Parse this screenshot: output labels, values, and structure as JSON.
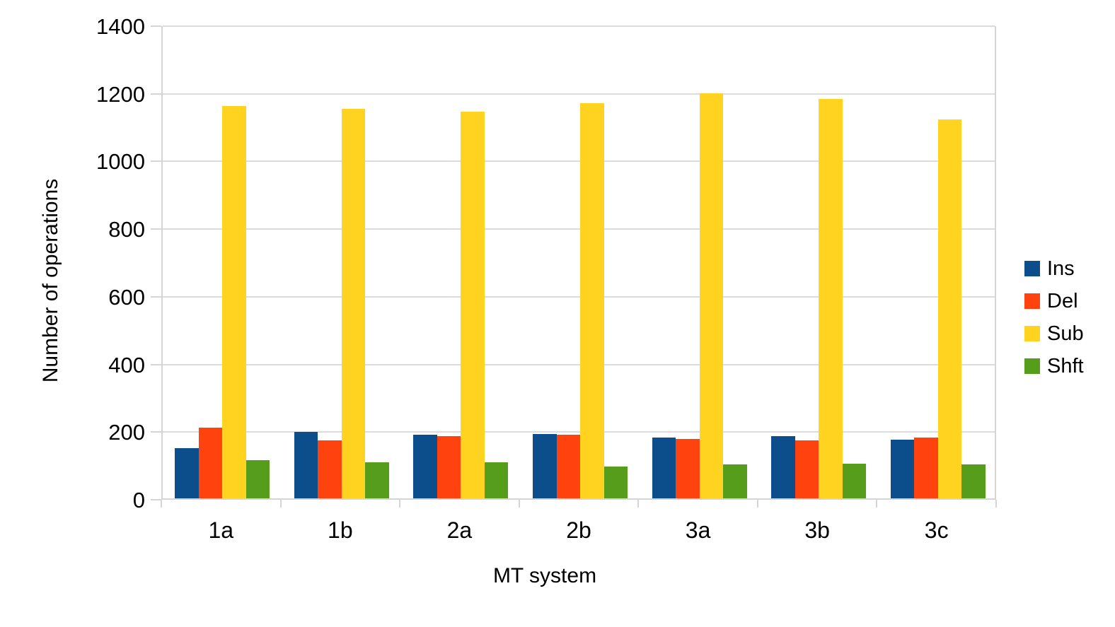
{
  "chart_data": {
    "type": "bar",
    "title": "",
    "xlabel": "MT system",
    "ylabel": "Number of operations",
    "categories": [
      "1a",
      "1b",
      "2a",
      "2b",
      "3a",
      "3b",
      "3c"
    ],
    "series": [
      {
        "name": "Ins",
        "color": "#0c4d8c",
        "values": [
          148,
          197,
          188,
          191,
          180,
          184,
          173
        ]
      },
      {
        "name": "Del",
        "color": "#ff420e",
        "values": [
          210,
          171,
          183,
          188,
          175,
          171,
          179
        ]
      },
      {
        "name": "Sub",
        "color": "#ffd320",
        "values": [
          1160,
          1151,
          1143,
          1168,
          1198,
          1181,
          1120
        ]
      },
      {
        "name": "Shft",
        "color": "#579d1c",
        "values": [
          112,
          107,
          106,
          95,
          100,
          102,
          100
        ]
      }
    ],
    "ylim": [
      0,
      1400
    ],
    "ytick_step": 200,
    "ytick_labels": [
      "0",
      "200",
      "400",
      "600",
      "800",
      "1000",
      "1200",
      "1400"
    ],
    "grid": "horizontal",
    "legend_position": "right",
    "background_color": "#ffffff",
    "gridline_color": "#dcdcdc",
    "text_color": "#000000"
  }
}
